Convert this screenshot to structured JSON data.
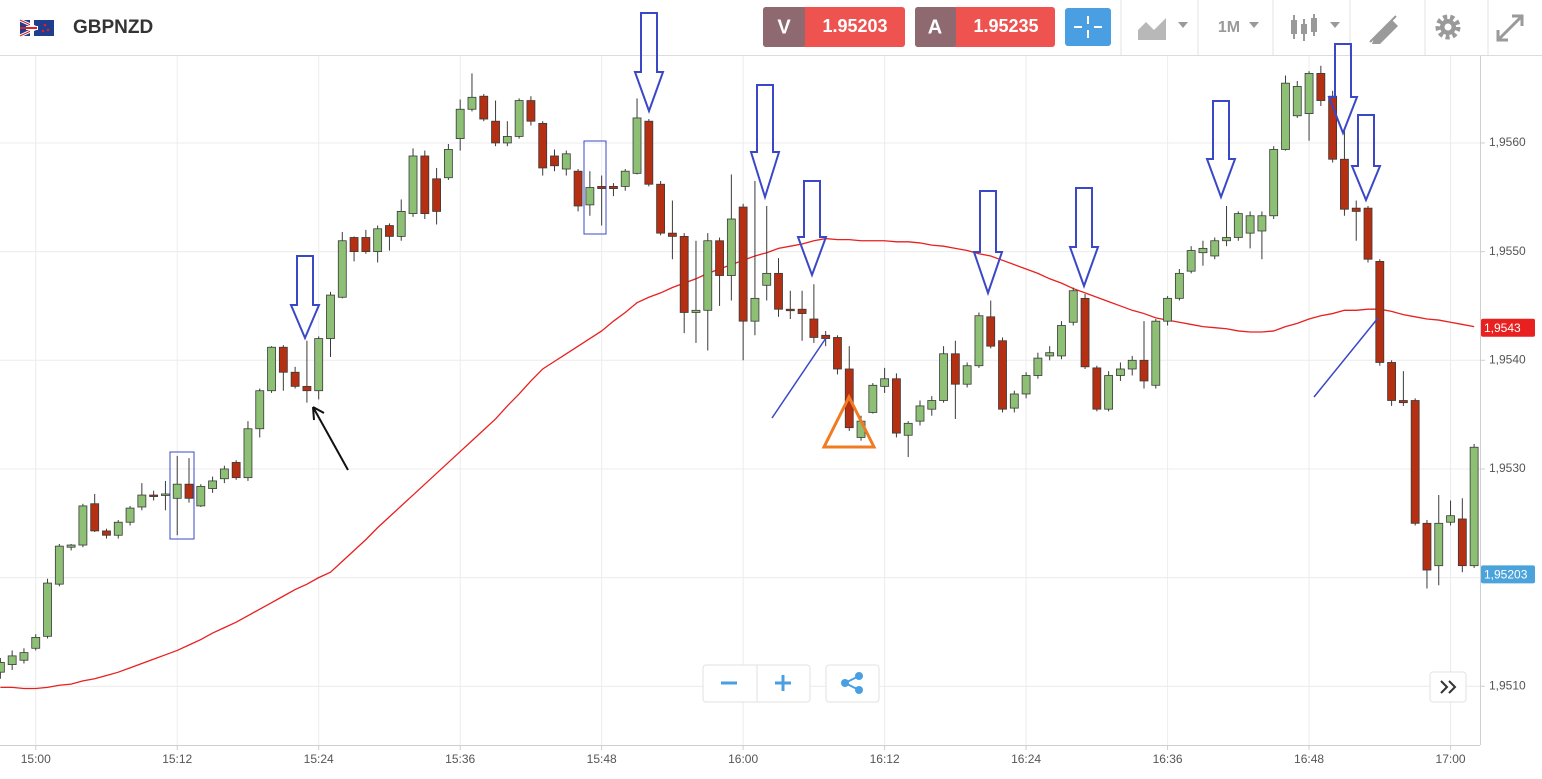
{
  "toolbar": {
    "symbol": "GBPNZD",
    "sell_label": "V",
    "sell_price": 1.95203,
    "buy_label": "A",
    "buy_price": 1.95235,
    "timeframe": "1M"
  },
  "chart_data": {
    "type": "candlestick",
    "categories": [
      null,
      null,
      null,
      "15:00",
      null,
      null,
      null,
      null,
      null,
      null,
      null,
      null,
      null,
      null,
      null,
      "15:12",
      null,
      null,
      null,
      null,
      null,
      null,
      null,
      null,
      null,
      null,
      null,
      "15:24",
      null,
      null,
      null,
      null,
      null,
      null,
      null,
      null,
      null,
      null,
      null,
      "15:36",
      null,
      null,
      null,
      null,
      null,
      null,
      null,
      null,
      null,
      null,
      null,
      "15:48",
      null,
      null,
      null,
      null,
      null,
      null,
      null,
      null,
      null,
      null,
      null,
      "16:00",
      null,
      null,
      null,
      null,
      null,
      null,
      null,
      null,
      null,
      null,
      null,
      "16:12",
      null,
      null,
      null,
      null,
      null,
      null,
      null,
      null,
      null,
      null,
      null,
      "16:24",
      null,
      null,
      null,
      null,
      null,
      null,
      null,
      null,
      null,
      null,
      null,
      "16:36",
      null,
      null,
      null,
      null,
      null,
      null,
      null,
      null,
      null,
      null,
      null,
      "16:48",
      null,
      null,
      null,
      null,
      null,
      null,
      null,
      null,
      null,
      null,
      null,
      "17:00",
      null,
      null
    ],
    "open": [
      1.95113,
      1.9512,
      1.95124,
      1.95135,
      1.95146,
      1.95194,
      1.95228,
      1.9523,
      1.95268,
      1.95243,
      1.95239,
      1.95251,
      1.95265,
      1.95276,
      1.95276,
      1.95273,
      1.95286,
      1.95266,
      1.95282,
      1.95291,
      1.95306,
      1.95292,
      1.95337,
      1.95372,
      1.95412,
      1.95389,
      1.95376,
      1.95372,
      1.9542,
      1.95458,
      1.95513,
      1.95513,
      1.955,
      1.95524,
      1.95514,
      1.95535,
      1.95588,
      1.95567,
      1.95568,
      1.95604,
      1.95631,
      1.95643,
      1.9562,
      1.956,
      1.95606,
      1.95639,
      1.95618,
      1.95588,
      1.95576,
      1.95574,
      1.95543,
      1.9556,
      1.9556,
      1.9556,
      1.95572,
      1.9562,
      1.95562,
      1.95517,
      1.95514,
      1.95444,
      1.95446,
      1.9551,
      1.95478,
      1.95541,
      1.95436,
      1.95469,
      1.9548,
      1.95447,
      1.95447,
      1.95438,
      1.95423,
      1.95421,
      1.95392,
      1.95329,
      1.95352,
      1.95376,
      1.95383,
      1.95331,
      1.95344,
      1.95355,
      1.95363,
      1.95406,
      1.95378,
      1.95395,
      1.9544,
      1.95418,
      1.95356,
      1.95369,
      1.95386,
      1.95404,
      1.95404,
      1.95435,
      1.95457,
      1.95393,
      1.95355,
      1.95386,
      1.95392,
      1.954,
      1.95377,
      1.95436,
      1.95457,
      1.95482,
      1.95499,
      1.95496,
      1.9551,
      1.95513,
      1.95517,
      1.95519,
      1.95533,
      1.95594,
      1.95625,
      1.95627,
      1.95664,
      1.95643,
      1.95585,
      1.9554,
      1.9554,
      1.95491,
      1.95398,
      1.95363,
      1.95363,
      1.9525,
      1.95211,
      1.95251,
      1.95254,
      1.95211
    ],
    "high": [
      1.95126,
      1.95133,
      1.95135,
      1.95148,
      1.95199,
      1.95231,
      1.95231,
      1.95268,
      1.95277,
      1.95245,
      1.95253,
      1.95266,
      1.95287,
      1.9528,
      1.95289,
      1.95312,
      1.9531,
      1.95286,
      1.95293,
      1.95303,
      1.95308,
      1.95344,
      1.95374,
      1.95413,
      1.95414,
      1.95394,
      1.95418,
      1.95422,
      1.95463,
      1.95518,
      1.95514,
      1.9552,
      1.95524,
      1.95526,
      1.95548,
      1.95595,
      1.95593,
      1.95577,
      1.95599,
      1.9564,
      1.95664,
      1.95645,
      1.95639,
      1.9562,
      1.95641,
      1.95643,
      1.9562,
      1.95594,
      1.95593,
      1.95576,
      1.95574,
      1.9557,
      1.95563,
      1.95576,
      1.95641,
      1.95622,
      1.95565,
      1.95547,
      1.95517,
      1.9551,
      1.95517,
      1.95513,
      1.95571,
      1.95544,
      1.95565,
      1.95542,
      1.95494,
      1.95464,
      1.95464,
      1.9547,
      1.95427,
      1.95423,
      1.95413,
      1.95349,
      1.95379,
      1.95393,
      1.95388,
      1.95344,
      1.95363,
      1.95367,
      1.95413,
      1.95418,
      1.95398,
      1.95444,
      1.95455,
      1.95421,
      1.95372,
      1.95389,
      1.95407,
      1.95413,
      1.95436,
      1.95467,
      1.95461,
      1.95395,
      1.9539,
      1.95398,
      1.95404,
      1.95436,
      1.95438,
      1.95459,
      1.95484,
      1.95505,
      1.9551,
      1.95513,
      1.95542,
      1.95537,
      1.95537,
      1.95537,
      1.95597,
      1.95662,
      1.95657,
      1.95666,
      1.95671,
      1.95648,
      1.95611,
      1.95547,
      1.95542,
      1.95493,
      1.954,
      1.9539,
      1.95365,
      1.95253,
      1.95276,
      1.95271,
      1.95273,
      1.95323
    ],
    "low": [
      1.95107,
      1.95115,
      1.95121,
      1.95133,
      1.95144,
      1.95192,
      1.95225,
      1.95228,
      1.95242,
      1.95236,
      1.95236,
      1.95248,
      1.95262,
      1.95271,
      1.95262,
      1.95239,
      1.95269,
      1.95265,
      1.95278,
      1.95287,
      1.9529,
      1.95289,
      1.95329,
      1.9537,
      1.95372,
      1.95374,
      1.95361,
      1.95364,
      1.95403,
      1.95457,
      1.95491,
      1.95498,
      1.9549,
      1.95501,
      1.9551,
      1.95532,
      1.9553,
      1.95525,
      1.95566,
      1.95593,
      1.95629,
      1.9562,
      1.95597,
      1.95597,
      1.95604,
      1.95616,
      1.9557,
      1.95574,
      1.9557,
      1.95537,
      1.95533,
      1.95524,
      1.95551,
      1.95556,
      1.95571,
      1.9556,
      1.95515,
      1.95493,
      1.95425,
      1.95416,
      1.95409,
      1.9545,
      1.95455,
      1.954,
      1.95423,
      1.95455,
      1.9544,
      1.95438,
      1.95418,
      1.95416,
      1.95413,
      1.95387,
      1.95335,
      1.95326,
      1.95351,
      1.9537,
      1.95329,
      1.95311,
      1.9534,
      1.95349,
      1.95361,
      1.95346,
      1.95375,
      1.95393,
      1.95411,
      1.95352,
      1.95352,
      1.95365,
      1.95383,
      1.954,
      1.95401,
      1.95432,
      1.95392,
      1.95353,
      1.95353,
      1.95381,
      1.95386,
      1.95374,
      1.95374,
      1.95432,
      1.95455,
      1.9548,
      1.95487,
      1.95493,
      1.95505,
      1.9551,
      1.95503,
      1.95493,
      1.9553,
      1.95593,
      1.95623,
      1.95602,
      1.95634,
      1.95582,
      1.95533,
      1.9551,
      1.9549,
      1.95395,
      1.95358,
      1.95358,
      1.95248,
      1.9519,
      1.95193,
      1.95248,
      1.95205,
      1.95209
    ],
    "close": [
      1.95122,
      1.95128,
      1.95131,
      1.95145,
      1.95195,
      1.95229,
      1.9523,
      1.95266,
      1.95243,
      1.95239,
      1.95251,
      1.95264,
      1.95276,
      1.95275,
      1.95277,
      1.95286,
      1.95273,
      1.95284,
      1.95289,
      1.953,
      1.95292,
      1.95337,
      1.95372,
      1.95412,
      1.95389,
      1.95376,
      1.95372,
      1.9542,
      1.9546,
      1.9551,
      1.955,
      1.955,
      1.95521,
      1.95514,
      1.95537,
      1.95588,
      1.95535,
      1.95537,
      1.95594,
      1.95631,
      1.95642,
      1.95622,
      1.956,
      1.95606,
      1.95639,
      1.9562,
      1.95577,
      1.95579,
      1.9559,
      1.95542,
      1.95559,
      1.95558,
      1.95558,
      1.95574,
      1.95623,
      1.95562,
      1.95517,
      1.95514,
      1.95444,
      1.95446,
      1.9551,
      1.95478,
      1.9553,
      1.95436,
      1.95457,
      1.9548,
      1.95447,
      1.95446,
      1.95443,
      1.95421,
      1.9542,
      1.95392,
      1.95338,
      1.95344,
      1.95377,
      1.95383,
      1.95333,
      1.95342,
      1.95358,
      1.95363,
      1.95406,
      1.95378,
      1.95395,
      1.95441,
      1.95413,
      1.95355,
      1.95369,
      1.95386,
      1.95402,
      1.95407,
      1.95432,
      1.95464,
      1.95394,
      1.95355,
      1.95386,
      1.95392,
      1.954,
      1.95381,
      1.95436,
      1.95457,
      1.9548,
      1.95501,
      1.95503,
      1.9551,
      1.95513,
      1.95535,
      1.95533,
      1.95533,
      1.95594,
      1.95655,
      1.95652,
      1.95664,
      1.95639,
      1.95585,
      1.95539,
      1.95537,
      1.95493,
      1.95398,
      1.95363,
      1.95361,
      1.9525,
      1.95207,
      1.9525,
      1.95257,
      1.95211,
      1.9532
    ],
    "up_color": "#8dbf74",
    "down_color": "#b52f12",
    "moving_average": {
      "color": "#e8201f",
      "values": [
        1.95099,
        1.95099,
        1.95098,
        1.95098,
        1.95099,
        1.95101,
        1.95102,
        1.95105,
        1.95107,
        1.9511,
        1.95113,
        1.95117,
        1.95121,
        1.95125,
        1.95129,
        1.95133,
        1.95138,
        1.95143,
        1.95149,
        1.95154,
        1.95159,
        1.95165,
        1.95171,
        1.95177,
        1.95183,
        1.95189,
        1.95194,
        1.952,
        1.95205,
        1.95215,
        1.95225,
        1.95235,
        1.95246,
        1.95256,
        1.95266,
        1.95276,
        1.95286,
        1.95296,
        1.95306,
        1.95316,
        1.95326,
        1.95336,
        1.95346,
        1.95358,
        1.95369,
        1.95381,
        1.95392,
        1.95399,
        1.95406,
        1.95413,
        1.9542,
        1.95427,
        1.95436,
        1.95444,
        1.95453,
        1.95458,
        1.95462,
        1.95467,
        1.95471,
        1.95475,
        1.9548,
        1.95484,
        1.95488,
        1.95492,
        1.95496,
        1.95499,
        1.95503,
        1.95505,
        1.95507,
        1.9551,
        1.95512,
        1.95511,
        1.95511,
        1.9551,
        1.9551,
        1.9551,
        1.95509,
        1.95509,
        1.95508,
        1.95506,
        1.95505,
        1.95503,
        1.95501,
        1.95498,
        1.95496,
        1.95492,
        1.95488,
        1.95484,
        1.9548,
        1.95475,
        1.95471,
        1.95466,
        1.95462,
        1.95458,
        1.95454,
        1.9545,
        1.95446,
        1.95443,
        1.95439,
        1.95437,
        1.95435,
        1.95433,
        1.95431,
        1.9543,
        1.95429,
        1.95427,
        1.95426,
        1.95426,
        1.95427,
        1.95431,
        1.95434,
        1.95438,
        1.95441,
        1.95443,
        1.95446,
        1.95446,
        1.95447,
        1.95447,
        1.95445,
        1.95442,
        1.9544,
        1.95438,
        1.95437,
        1.95435,
        1.95433,
        1.95431
      ]
    },
    "ylim": [
      1.95046,
      1.9568
    ],
    "yticks": [
      {
        "value": 1.951,
        "label": "1,9510"
      },
      {
        "value": 1.952,
        "label": "1,9520"
      },
      {
        "value": 1.953,
        "label": "1,9530"
      },
      {
        "value": 1.954,
        "label": "1,9540"
      },
      {
        "value": 1.955,
        "label": "1,9550"
      },
      {
        "value": 1.956,
        "label": "1,9560"
      }
    ],
    "grid": true,
    "price_labels": [
      {
        "value": 1.9543,
        "label": "1,9543",
        "color": "#e8201f"
      },
      {
        "value": 1.95203,
        "label": "1,95203",
        "color": "#4ba3dc"
      }
    ]
  }
}
